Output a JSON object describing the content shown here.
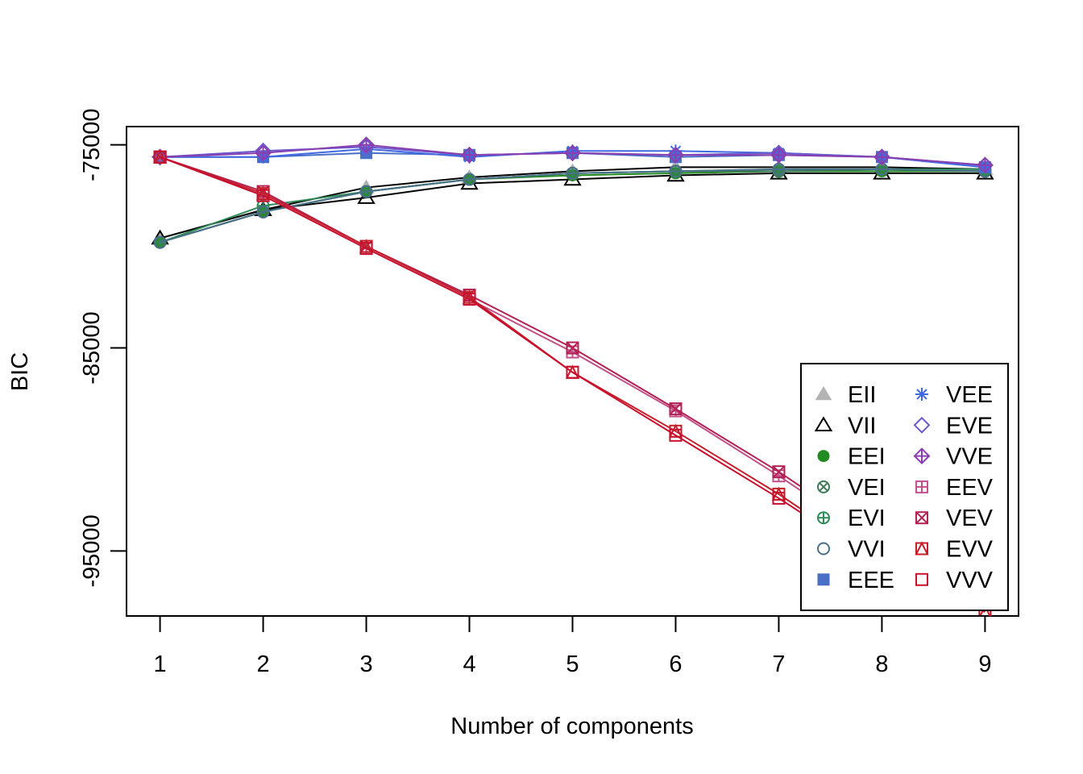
{
  "chart_data": {
    "type": "line",
    "title": "",
    "xlabel": "Number of components",
    "ylabel": "BIC",
    "x": [
      1,
      2,
      3,
      4,
      5,
      6,
      7,
      8,
      9
    ],
    "xlim": [
      0.675,
      9.325
    ],
    "ylim": [
      -98200,
      -74100
    ],
    "xticks": [
      "1",
      "2",
      "3",
      "4",
      "5",
      "6",
      "7",
      "8",
      "9"
    ],
    "yticks": [
      {
        "value": -75000,
        "label": "-75000"
      },
      {
        "value": -85000,
        "label": "-85000"
      },
      {
        "value": -95000,
        "label": "-95000"
      }
    ],
    "grid": false,
    "legend_position": "bottom-right",
    "series": [
      {
        "name": "EII",
        "color": "#b3b3b3",
        "symbol": "triangle-filled",
        "line_color": "#000000",
        "values": [
          -79600,
          -78200,
          -77100,
          -76600,
          -76300,
          -76100,
          -76100,
          -76100,
          -76200
        ]
      },
      {
        "name": "VII",
        "color": "#000000",
        "symbol": "triangle-open",
        "line_color": "#000000",
        "values": [
          -79600,
          -78200,
          -77600,
          -76900,
          -76700,
          -76500,
          -76400,
          -76400,
          -76400
        ]
      },
      {
        "name": "EEI",
        "color": "#228b22",
        "symbol": "circle-filled",
        "line_color": "#228b22",
        "values": [
          -79800,
          -78300,
          -77300,
          -76700,
          -76500,
          -76400,
          -76300,
          -76300,
          -76300
        ]
      },
      {
        "name": "VEI",
        "color": "#3f7a58",
        "symbol": "circle-x",
        "line_color": "#3f7a58",
        "values": [
          -79800,
          -78300,
          -77300,
          -76700,
          -76400,
          -76300,
          -76300,
          -76200,
          -76300
        ]
      },
      {
        "name": "EVI",
        "color": "#2e8b57",
        "symbol": "circle-plus",
        "line_color": "#2e8b57",
        "values": [
          -79800,
          -78000,
          -77300,
          -76700,
          -76400,
          -76300,
          -76200,
          -76200,
          -76200
        ]
      },
      {
        "name": "VVI",
        "color": "#4a6f8a",
        "symbol": "circle-open",
        "line_color": "#4a6f8a",
        "values": [
          -79800,
          -78300,
          -77300,
          -76700,
          -76400,
          -76300,
          -76200,
          -76200,
          -76300
        ]
      },
      {
        "name": "EEE",
        "color": "#4a6fc7",
        "symbol": "square-filled",
        "line_color": "#4a6fc7",
        "values": [
          -75600,
          -75600,
          -75400,
          -75500,
          -75400,
          -75600,
          -75500,
          -75600,
          -76100
        ]
      },
      {
        "name": "VEE",
        "color": "#4169e1",
        "symbol": "asterisk",
        "line_color": "#4169e1",
        "values": [
          -75600,
          -75600,
          -75200,
          -75600,
          -75300,
          -75300,
          -75400,
          -75600,
          -76100
        ]
      },
      {
        "name": "EVE",
        "color": "#6a5acd",
        "symbol": "diamond-open",
        "line_color": "#6a5acd",
        "values": [
          -75600,
          -75300,
          -75100,
          -75500,
          -75400,
          -75500,
          -75400,
          -75600,
          -76000
        ]
      },
      {
        "name": "VVE",
        "color": "#8a3fb0",
        "symbol": "diamond-plus",
        "line_color": "#8a3fb0",
        "values": [
          -75600,
          -75400,
          -75000,
          -75500,
          -75400,
          -75500,
          -75500,
          -75600,
          -76000
        ]
      },
      {
        "name": "EEV",
        "color": "#c2508a",
        "symbol": "square-plus",
        "line_color": "#c2508a",
        "values": [
          -75600,
          -77500,
          -80100,
          -82600,
          -85200,
          -88100,
          -91300,
          -94700,
          -97300
        ]
      },
      {
        "name": "VEV",
        "color": "#b22252",
        "symbol": "square-x",
        "line_color": "#b22252",
        "values": [
          -75600,
          -77300,
          -80000,
          -82400,
          -85000,
          -88000,
          -91100,
          -94500,
          -97200
        ]
      },
      {
        "name": "EVV",
        "color": "#c41e28",
        "symbol": "square-triangle",
        "line_color": "#c41e28",
        "values": [
          -75600,
          -77400,
          -80000,
          -82500,
          -86200,
          -89100,
          -92200,
          -95600,
          -98000
        ]
      },
      {
        "name": "VVV",
        "color": "#c8102e",
        "symbol": "square-open",
        "line_color": "#c8102e",
        "values": [
          -75600,
          -77500,
          -80100,
          -82600,
          -86200,
          -89300,
          -92400,
          -95700,
          -98000
        ]
      }
    ]
  }
}
